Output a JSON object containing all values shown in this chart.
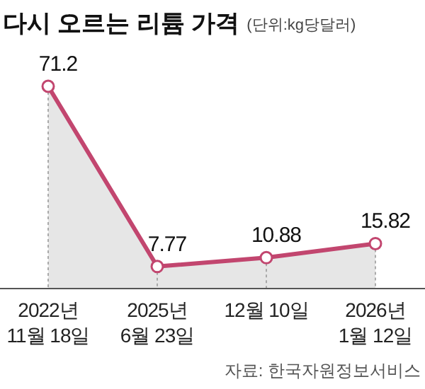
{
  "chart_data": {
    "type": "area",
    "title": "다시 오르는 리튬 가격",
    "subtitle": "(단위:kg당달러)",
    "categories": [
      "2022년\n11월 18일",
      "2025년\n6월 23일",
      "12월 10일",
      "2026년\n1월 12일"
    ],
    "series": [
      {
        "color": "#c2466f",
        "values": [
          71.2,
          7.77,
          10.88,
          15.82
        ]
      }
    ],
    "ylim": [
      0,
      71.2
    ],
    "tick_labels": "x",
    "marker": "circle",
    "data_labels": true,
    "annotations": [
      "자료: 한국자원정보서비스"
    ]
  }
}
